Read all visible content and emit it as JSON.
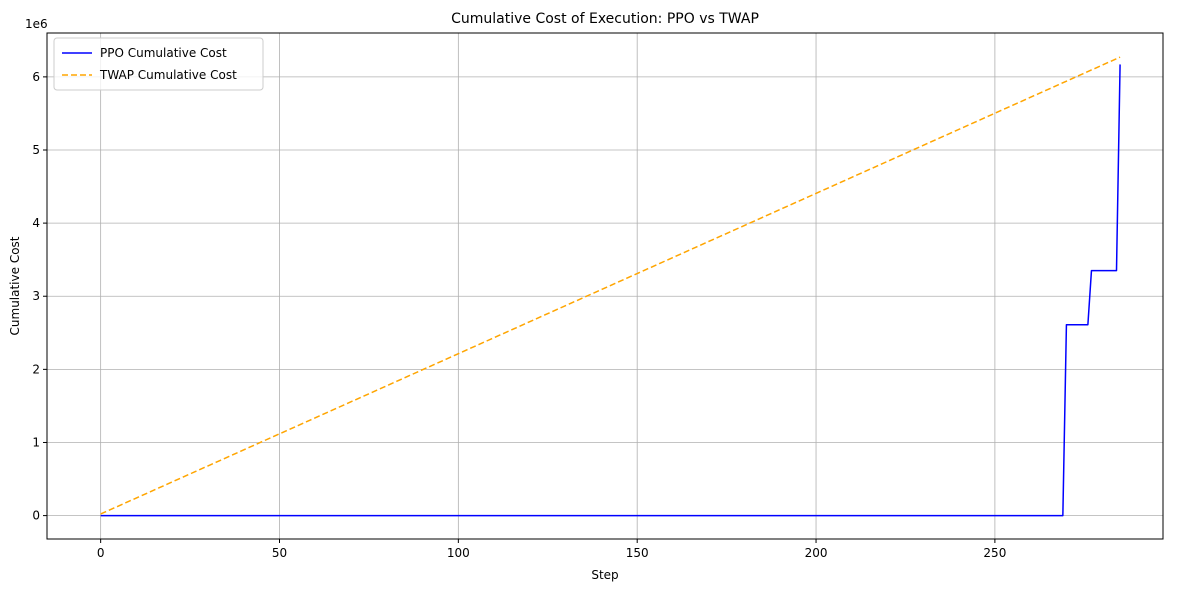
{
  "chart_data": {
    "type": "line",
    "title": "Cumulative Cost of Execution: PPO vs TWAP",
    "xlabel": "Step",
    "ylabel": "Cumulative Cost",
    "y_scale_label": "1e6",
    "xlim": [
      -15,
      297
    ],
    "ylim": [
      -0.32,
      6.6
    ],
    "x_ticks": [
      0,
      50,
      100,
      150,
      200,
      250
    ],
    "x_tick_labels": [
      "0",
      "50",
      "100",
      "150",
      "200",
      "250"
    ],
    "y_ticks": [
      0,
      1,
      2,
      3,
      4,
      5,
      6
    ],
    "y_tick_labels": [
      "0",
      "1",
      "2",
      "3",
      "4",
      "5",
      "6"
    ],
    "grid": true,
    "legend_position": "top-left",
    "series": [
      {
        "name": "PPO Cumulative Cost",
        "color": "#0000ff",
        "style": "solid",
        "x": [
          0,
          269,
          270,
          276,
          277,
          284,
          285
        ],
        "y": [
          0,
          0,
          2.61,
          2.61,
          3.35,
          3.35,
          6.17
        ]
      },
      {
        "name": "TWAP Cumulative Cost",
        "color": "#ffa500",
        "style": "dashed",
        "x": [
          0,
          285
        ],
        "y": [
          0.022,
          6.27
        ]
      }
    ]
  }
}
